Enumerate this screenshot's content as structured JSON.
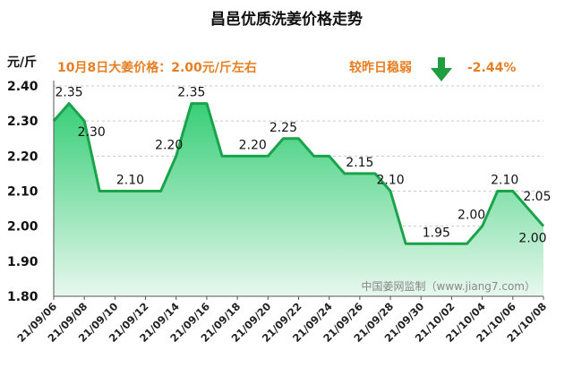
{
  "chart_data": {
    "type": "area",
    "title": "昌邑优质洗姜价格走势",
    "ylabel": "元/斤",
    "ylim": [
      1.8,
      2.4
    ],
    "y_ticks": [
      "1.80",
      "1.90",
      "2.00",
      "2.10",
      "2.20",
      "2.30",
      "2.40"
    ],
    "x_tick_labels": [
      "21/09/06",
      "21/09/08",
      "21/09/10",
      "21/09/12",
      "21/09/14",
      "21/09/16",
      "21/09/18",
      "21/09/20",
      "21/09/22",
      "21/09/24",
      "21/09/26",
      "21/09/28",
      "21/09/30",
      "21/10/02",
      "21/10/04",
      "21/10/06",
      "21/10/08"
    ],
    "x": [
      "21/09/06",
      "21/09/07",
      "21/09/08",
      "21/09/09",
      "21/09/10",
      "21/09/11",
      "21/09/12",
      "21/09/13",
      "21/09/14",
      "21/09/15",
      "21/09/16",
      "21/09/17",
      "21/09/18",
      "21/09/19",
      "21/09/20",
      "21/09/21",
      "21/09/22",
      "21/09/23",
      "21/09/24",
      "21/09/25",
      "21/09/26",
      "21/09/27",
      "21/09/28",
      "21/09/29",
      "21/09/30",
      "21/10/01",
      "21/10/02",
      "21/10/03",
      "21/10/04",
      "21/10/05",
      "21/10/06",
      "21/10/07",
      "21/10/08"
    ],
    "values": [
      2.3,
      2.35,
      2.3,
      2.1,
      2.1,
      2.1,
      2.1,
      2.1,
      2.2,
      2.35,
      2.35,
      2.2,
      2.2,
      2.2,
      2.2,
      2.25,
      2.25,
      2.2,
      2.2,
      2.15,
      2.15,
      2.15,
      2.1,
      1.95,
      1.95,
      1.95,
      1.95,
      1.95,
      2.0,
      2.1,
      2.1,
      2.05,
      2.0
    ],
    "data_labels": [
      {
        "index": 1,
        "text": "2.35"
      },
      {
        "index": 2,
        "text": "2.30"
      },
      {
        "index": 5,
        "text": "2.10"
      },
      {
        "index": 8,
        "text": "2.20"
      },
      {
        "index": 9,
        "text": "2.35"
      },
      {
        "index": 13,
        "text": "2.20"
      },
      {
        "index": 15,
        "text": "2.25"
      },
      {
        "index": 20,
        "text": "2.15"
      },
      {
        "index": 22,
        "text": "2.10"
      },
      {
        "index": 25,
        "text": "1.95"
      },
      {
        "index": 28,
        "text": "2.00"
      },
      {
        "index": 29,
        "text": "2.10"
      },
      {
        "index": 31,
        "text": "2.05"
      },
      {
        "index": 32,
        "text": "2.00"
      }
    ],
    "grid": true,
    "colors": {
      "line": "#1aa34a",
      "fill_top": "#2ecc71",
      "fill_bottom": "#e8f8ee",
      "arrow": "#1e9e3e",
      "note": "#e67e22"
    }
  },
  "notes": {
    "price_note": "10月8日大姜价格：2.00元/斤左右",
    "trend_label": "较昨日稳弱",
    "change": "-2.44%",
    "trend_icon": "down-arrow-icon"
  },
  "watermark": "中国姜网监制（www.jiang7.com）"
}
